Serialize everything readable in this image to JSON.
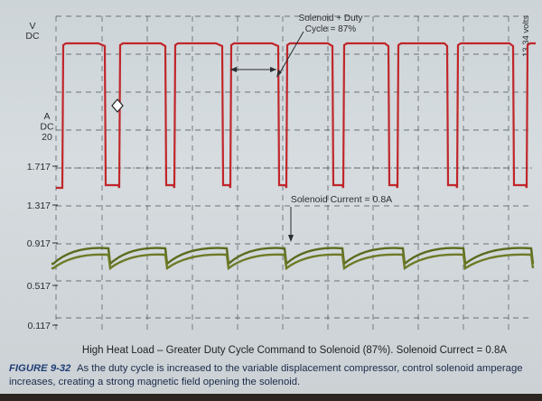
{
  "chart_data": {
    "type": "line",
    "top_axis_label": "V\nDC",
    "right_axis_label": "13.34 volts",
    "left_axis_label": "A\nDC\n20",
    "y_ticks": [
      "1.717",
      "1.317",
      "0.917",
      "0.517",
      "0.117"
    ],
    "annotations": [
      {
        "text_lines": [
          "Solenoid + Duty",
          "Cycle = 87%"
        ]
      },
      {
        "text": "Solenoid Current = 0.8A"
      }
    ],
    "series": [
      {
        "color": "#c0262a",
        "on_level_v": 13.34,
        "duty_cycle_percent": 87,
        "pulses": [
          {
            "on": 69,
            "off": 116
          },
          {
            "on": 132,
            "off": 183
          },
          {
            "on": 193,
            "off": 246
          },
          {
            "on": 255,
            "off": 308
          },
          {
            "on": 317,
            "off": 368
          },
          {
            "on": 380,
            "off": 430
          },
          {
            "on": 440,
            "off": 495
          },
          {
            "on": 506,
            "off": 568
          },
          {
            "on": 583,
            "off": 600
          }
        ]
      },
      {
        "color": "#5c6a1e",
        "current_a": 0.8,
        "dips": [
          59,
          122,
          185,
          253,
          317,
          381,
          448,
          515
        ]
      }
    ]
  },
  "caption_line": "High Heat Load – Greater Duty Cycle Command to Solenoid (87%). Solenoid Currect = 0.8A",
  "figure_label": "FIGURE 9-32",
  "figure_caption": "As the duty cycle is increased to the variable displacement compressor, control solenoid amperage increases, creating a strong magnetic field opening the solenoid."
}
